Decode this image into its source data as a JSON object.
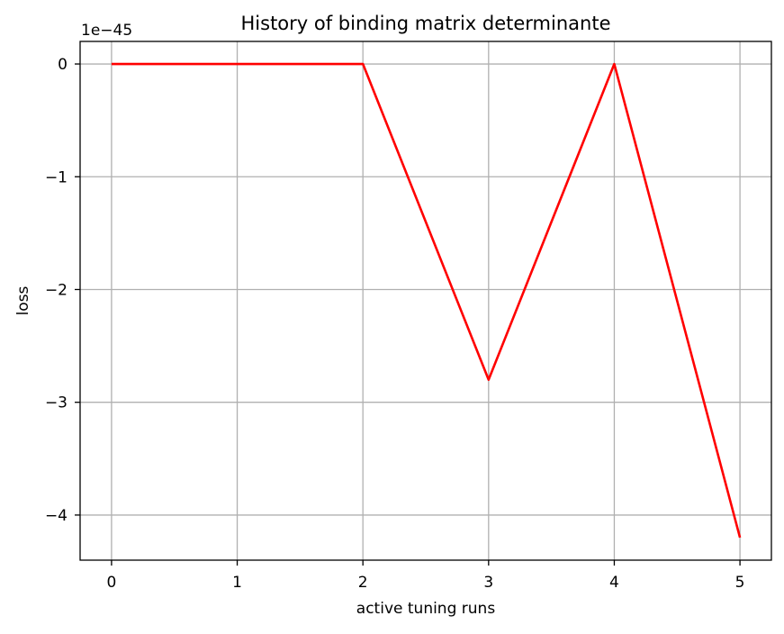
{
  "chart_data": {
    "type": "line",
    "title": "History of binding matrix determinante",
    "xlabel": "active tuning runs",
    "ylabel": "loss",
    "y_offset_label": "1e−45",
    "grid": true,
    "x": [
      0,
      1,
      2,
      3,
      4,
      5
    ],
    "series": [
      {
        "values": [
          0,
          0,
          0,
          -2.8,
          0,
          -4.2
        ],
        "color": "#ff0000"
      }
    ],
    "xlim": [
      -0.25,
      5.25
    ],
    "ylim": [
      -4.4,
      0.2
    ],
    "xticks": [
      0,
      1,
      2,
      3,
      4,
      5
    ],
    "xtick_labels": [
      "0",
      "1",
      "2",
      "3",
      "4",
      "5"
    ],
    "yticks": [
      0,
      -1,
      -2,
      -3,
      -4
    ],
    "ytick_labels": [
      "0",
      "−1",
      "−2",
      "−3",
      "−4"
    ],
    "grid_color": "#b0b0b0"
  }
}
